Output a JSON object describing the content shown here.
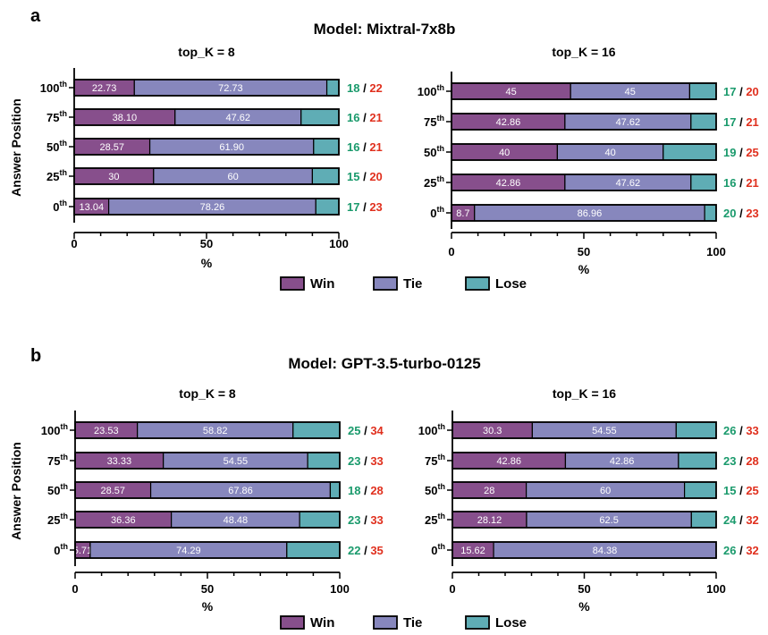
{
  "colors": {
    "win": "#874f8c",
    "tie": "#8787bd",
    "lose": "#5fadb5",
    "count_win": "#1a9a6c",
    "count_total": "#e0301e"
  },
  "legend": {
    "win": "Win",
    "tie": "Tie",
    "lose": "Lose"
  },
  "yaxis_title": "Answer Position",
  "chart_data": [
    {
      "type": "bar",
      "orientation": "horizontal",
      "stacked": true,
      "panel": "a",
      "model_title": "Model: Mixtral-7x8b",
      "title": "top_K = 8",
      "xlabel": "%",
      "ylabel": "Answer Position",
      "xlim": [
        0,
        100
      ],
      "xticks": [
        0,
        50,
        100
      ],
      "categories": [
        {
          "base": "100",
          "sup": "th"
        },
        {
          "base": "75",
          "sup": "th"
        },
        {
          "base": "50",
          "sup": "th"
        },
        {
          "base": "25",
          "sup": "th"
        },
        {
          "base": "0",
          "sup": "th"
        }
      ],
      "series": [
        {
          "name": "Win",
          "values": [
            22.73,
            38.1,
            28.57,
            30,
            13.04
          ],
          "labels": [
            "22.73",
            "38.10",
            "28.57",
            "30",
            "13.04"
          ]
        },
        {
          "name": "Tie",
          "values": [
            72.73,
            47.62,
            61.9,
            60,
            78.26
          ],
          "labels": [
            "72.73",
            "47.62",
            "61.90",
            "60",
            "78.26"
          ]
        },
        {
          "name": "Lose",
          "values": [
            4.54,
            14.28,
            9.53,
            10,
            8.7
          ],
          "labels": [
            "",
            "",
            "",
            "",
            ""
          ]
        }
      ],
      "counts": [
        {
          "win": "18",
          "sep": "/",
          "total": "22"
        },
        {
          "win": "16",
          "sep": "/",
          "total": "21"
        },
        {
          "win": "16",
          "sep": "/",
          "total": "21"
        },
        {
          "win": "15",
          "sep": "/",
          "total": "20"
        },
        {
          "win": "17",
          "sep": "/",
          "total": "23"
        }
      ]
    },
    {
      "type": "bar",
      "orientation": "horizontal",
      "stacked": true,
      "panel": "",
      "model_title": "",
      "title": "top_K = 16",
      "xlabel": "%",
      "ylabel": "",
      "xlim": [
        0,
        100
      ],
      "xticks": [
        0,
        50,
        100
      ],
      "categories": [
        {
          "base": "100",
          "sup": "th"
        },
        {
          "base": "75",
          "sup": "th"
        },
        {
          "base": "50",
          "sup": "th"
        },
        {
          "base": "25",
          "sup": "th"
        },
        {
          "base": "0",
          "sup": "th"
        }
      ],
      "series": [
        {
          "name": "Win",
          "values": [
            45,
            42.86,
            40,
            42.86,
            8.7
          ],
          "labels": [
            "45",
            "42.86",
            "40",
            "42.86",
            "8.7"
          ]
        },
        {
          "name": "Tie",
          "values": [
            45,
            47.62,
            40,
            47.62,
            86.96
          ],
          "labels": [
            "45",
            "47.62",
            "40",
            "47.62",
            "86.96"
          ]
        },
        {
          "name": "Lose",
          "values": [
            10,
            9.52,
            20,
            9.52,
            4.34
          ],
          "labels": [
            "",
            "",
            "",
            "",
            ""
          ]
        }
      ],
      "counts": [
        {
          "win": "17",
          "sep": "/",
          "total": "20"
        },
        {
          "win": "17",
          "sep": "/",
          "total": "21"
        },
        {
          "win": "19",
          "sep": "/",
          "total": "25"
        },
        {
          "win": "16",
          "sep": "/",
          "total": "21"
        },
        {
          "win": "20",
          "sep": "/",
          "total": "23"
        }
      ]
    },
    {
      "type": "bar",
      "orientation": "horizontal",
      "stacked": true,
      "panel": "b",
      "model_title": "Model: GPT-3.5-turbo-0125",
      "title": "top_K = 8",
      "xlabel": "%",
      "ylabel": "Answer Position",
      "xlim": [
        0,
        100
      ],
      "xticks": [
        0,
        50,
        100
      ],
      "categories": [
        {
          "base": "100",
          "sup": "th"
        },
        {
          "base": "75",
          "sup": "th"
        },
        {
          "base": "50",
          "sup": "th"
        },
        {
          "base": "25",
          "sup": "th"
        },
        {
          "base": "0",
          "sup": "th"
        }
      ],
      "series": [
        {
          "name": "Win",
          "values": [
            23.53,
            33.33,
            28.57,
            36.36,
            5.71
          ],
          "labels": [
            "23.53",
            "33.33",
            "28.57",
            "36.36",
            "5.71"
          ]
        },
        {
          "name": "Tie",
          "values": [
            58.82,
            54.55,
            67.86,
            48.48,
            74.29
          ],
          "labels": [
            "58.82",
            "54.55",
            "67.86",
            "48.48",
            "74.29"
          ]
        },
        {
          "name": "Lose",
          "values": [
            17.65,
            12.12,
            3.57,
            15.16,
            20
          ],
          "labels": [
            "",
            "",
            "",
            "",
            ""
          ]
        }
      ],
      "counts": [
        {
          "win": "25",
          "sep": "/",
          "total": "34"
        },
        {
          "win": "23",
          "sep": "/",
          "total": "33"
        },
        {
          "win": "18",
          "sep": "/",
          "total": "28"
        },
        {
          "win": "23",
          "sep": "/",
          "total": "33"
        },
        {
          "win": "22",
          "sep": "/",
          "total": "35"
        }
      ]
    },
    {
      "type": "bar",
      "orientation": "horizontal",
      "stacked": true,
      "panel": "",
      "model_title": "",
      "title": "top_K = 16",
      "xlabel": "%",
      "ylabel": "",
      "xlim": [
        0,
        100
      ],
      "xticks": [
        0,
        50,
        100
      ],
      "categories": [
        {
          "base": "100",
          "sup": "th"
        },
        {
          "base": "75",
          "sup": "th"
        },
        {
          "base": "50",
          "sup": "th"
        },
        {
          "base": "25",
          "sup": "th"
        },
        {
          "base": "0",
          "sup": "th"
        }
      ],
      "series": [
        {
          "name": "Win",
          "values": [
            30.3,
            42.86,
            28,
            28.12,
            15.62
          ],
          "labels": [
            "30.3",
            "42.86",
            "28",
            "28.12",
            "15.62"
          ]
        },
        {
          "name": "Tie",
          "values": [
            54.55,
            42.86,
            60,
            62.5,
            84.38
          ],
          "labels": [
            "54.55",
            "42.86",
            "60",
            "62.5",
            "84.38"
          ]
        },
        {
          "name": "Lose",
          "values": [
            15.15,
            14.28,
            12,
            9.38,
            0
          ],
          "labels": [
            "",
            "",
            "",
            "",
            ""
          ]
        }
      ],
      "counts": [
        {
          "win": "26",
          "sep": "/",
          "total": "33"
        },
        {
          "win": "23",
          "sep": "/",
          "total": "28"
        },
        {
          "win": "15",
          "sep": "/",
          "total": "25"
        },
        {
          "win": "24",
          "sep": "/",
          "total": "32"
        },
        {
          "win": "26",
          "sep": "/",
          "total": "32"
        }
      ]
    }
  ]
}
